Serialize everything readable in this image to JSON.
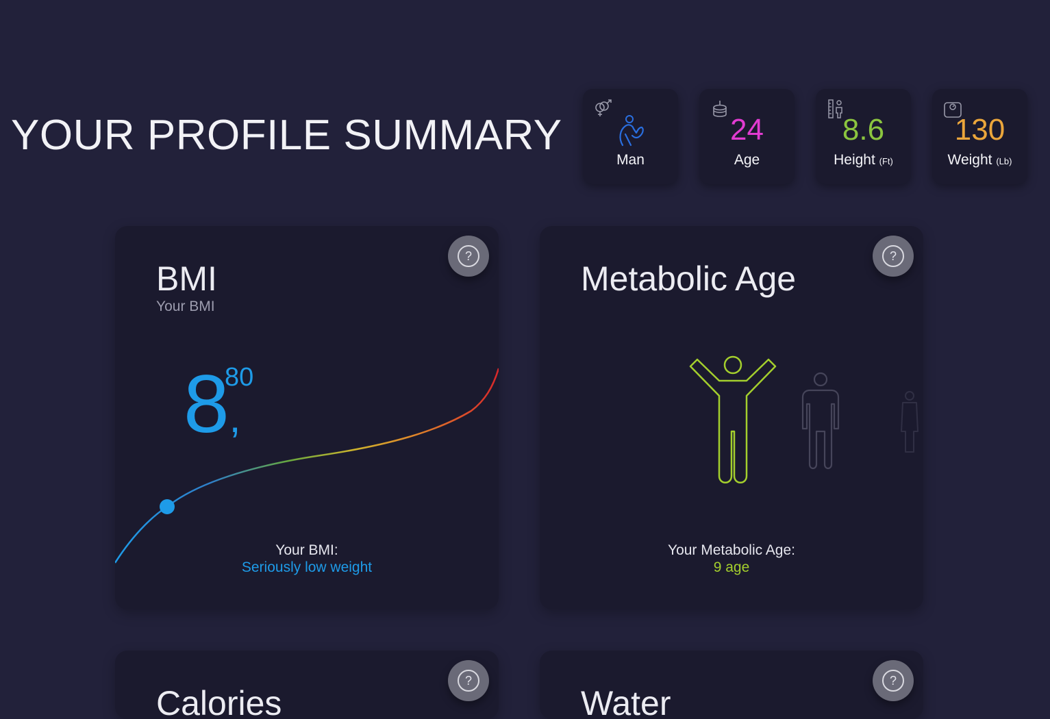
{
  "header": {
    "title": "YOUR PROFILE SUMMARY"
  },
  "stats": {
    "gender": {
      "label": "Man",
      "color": "#2a6fe0",
      "corner_icon": "gender-symbols-icon",
      "icon": "man-flexing-icon"
    },
    "age": {
      "value": "24",
      "label": "Age",
      "color": "#e23bd1",
      "corner_icon": "birthday-cake-icon"
    },
    "height": {
      "value": "8.6",
      "label": "Height",
      "unit": "(Ft)",
      "color": "#8bc53f",
      "corner_icon": "height-ruler-icon"
    },
    "weight": {
      "value": "130",
      "label": "Weight",
      "unit": "(Lb)",
      "color": "#eba63b",
      "corner_icon": "scale-icon"
    }
  },
  "cards": {
    "bmi": {
      "title": "BMI",
      "subtitle": "Your BMI",
      "value_int": "8",
      "value_sep": ",",
      "value_dec": "80",
      "result_label": "Your BMI:",
      "result_value": "Seriously low weight",
      "accent": "#1e9be8"
    },
    "metabolic": {
      "title": "Metabolic Age",
      "result_label": "Your Metabolic Age:",
      "result_value": "9 age",
      "accent": "#a4cf2d"
    },
    "calories": {
      "title": "Calories"
    },
    "water": {
      "title": "Water"
    }
  },
  "help_icon": "question-circle-icon"
}
